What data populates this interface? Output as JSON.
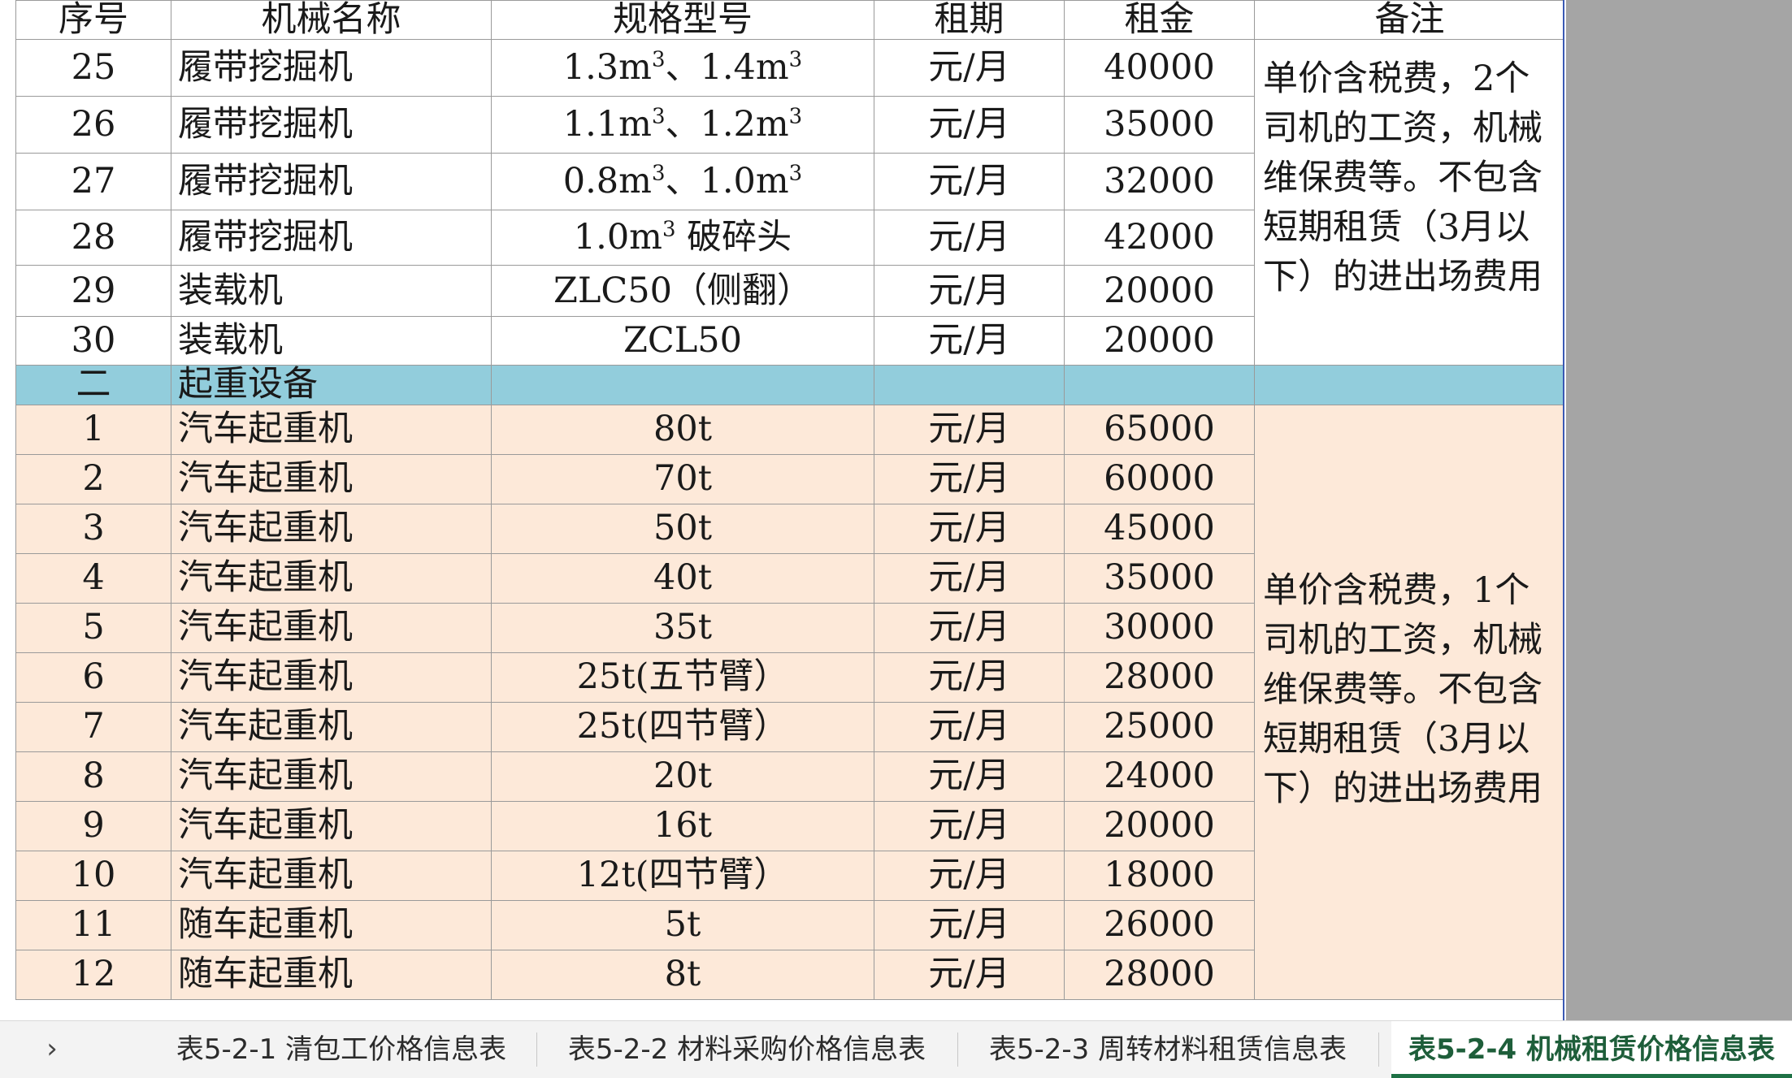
{
  "headers": [
    "序号",
    "机械名称",
    "规格型号",
    "租期",
    "租金",
    "备注"
  ],
  "rows_excavator": [
    {
      "no": "25",
      "name": "履带挖掘机",
      "spec_parts": [
        "1.3m",
        "3",
        "、1.4m",
        "3",
        ""
      ],
      "term": "元/月",
      "price": "40000"
    },
    {
      "no": "26",
      "name": "履带挖掘机",
      "spec_parts": [
        "1.1m",
        "3",
        "、1.2m",
        "3",
        ""
      ],
      "term": "元/月",
      "price": "35000"
    },
    {
      "no": "27",
      "name": "履带挖掘机",
      "spec_parts": [
        "0.8m",
        "3",
        "、1.0m",
        "3",
        ""
      ],
      "term": "元/月",
      "price": "32000"
    },
    {
      "no": "28",
      "name": "履带挖掘机",
      "spec_parts": [
        "1.0m",
        "3",
        " 破碎头",
        "",
        ""
      ],
      "term": "元/月",
      "price": "42000"
    },
    {
      "no": "29",
      "name": "装载机",
      "spec": "ZLC50（侧翻）",
      "term": "元/月",
      "price": "20000"
    },
    {
      "no": "30",
      "name": "装载机",
      "spec": "ZCL50",
      "term": "元/月",
      "price": "20000"
    }
  ],
  "note_group1": "单价含税费，2个司机的工资，机械维保费等。不包含短期租赁（3月以下）的进出场费用",
  "section": {
    "no": "二",
    "name": "起重设备"
  },
  "rows_crane": [
    {
      "no": "1",
      "name": "汽车起重机",
      "spec": "80t",
      "term": "元/月",
      "price": "65000"
    },
    {
      "no": "2",
      "name": "汽车起重机",
      "spec": "70t",
      "term": "元/月",
      "price": "60000"
    },
    {
      "no": "3",
      "name": "汽车起重机",
      "spec": "50t",
      "term": "元/月",
      "price": "45000"
    },
    {
      "no": "4",
      "name": "汽车起重机",
      "spec": "40t",
      "term": "元/月",
      "price": "35000"
    },
    {
      "no": "5",
      "name": "汽车起重机",
      "spec": "35t",
      "term": "元/月",
      "price": "30000"
    },
    {
      "no": "6",
      "name": "汽车起重机",
      "spec": "25t(五节臂）",
      "term": "元/月",
      "price": "28000"
    },
    {
      "no": "7",
      "name": "汽车起重机",
      "spec": "25t(四节臂）",
      "term": "元/月",
      "price": "25000"
    },
    {
      "no": "8",
      "name": "汽车起重机",
      "spec": "20t",
      "term": "元/月",
      "price": "24000"
    },
    {
      "no": "9",
      "name": "汽车起重机",
      "spec": "16t",
      "term": "元/月",
      "price": "20000"
    },
    {
      "no": "10",
      "name": "汽车起重机",
      "spec": "12t(四节臂）",
      "term": "元/月",
      "price": "18000"
    },
    {
      "no": "11",
      "name": "随车起重机",
      "spec": "5t",
      "term": "元/月",
      "price": "26000"
    },
    {
      "no": "12",
      "name": "随车起重机",
      "spec": "8t",
      "term": "元/月",
      "price": "28000"
    }
  ],
  "note_group2": "单价含税费，1个司机的工资，机械维保费等。不包含短期租赁（3月以下）的进出场费用",
  "sheet_tabs": [
    "表5-2-1 清包工价格信息表",
    "表5-2-2 材料采购价格信息表",
    "表5-2-3 周转材料租赁信息表",
    "表5-2-4 机械租赁价格信息表"
  ],
  "active_tab_index": 3,
  "nav_arrow_icon": "chevron-right-icon",
  "colors": {
    "section_row": "#92cddc",
    "crane_rows": "#fde9d9",
    "active_tab": "#1e7145"
  }
}
